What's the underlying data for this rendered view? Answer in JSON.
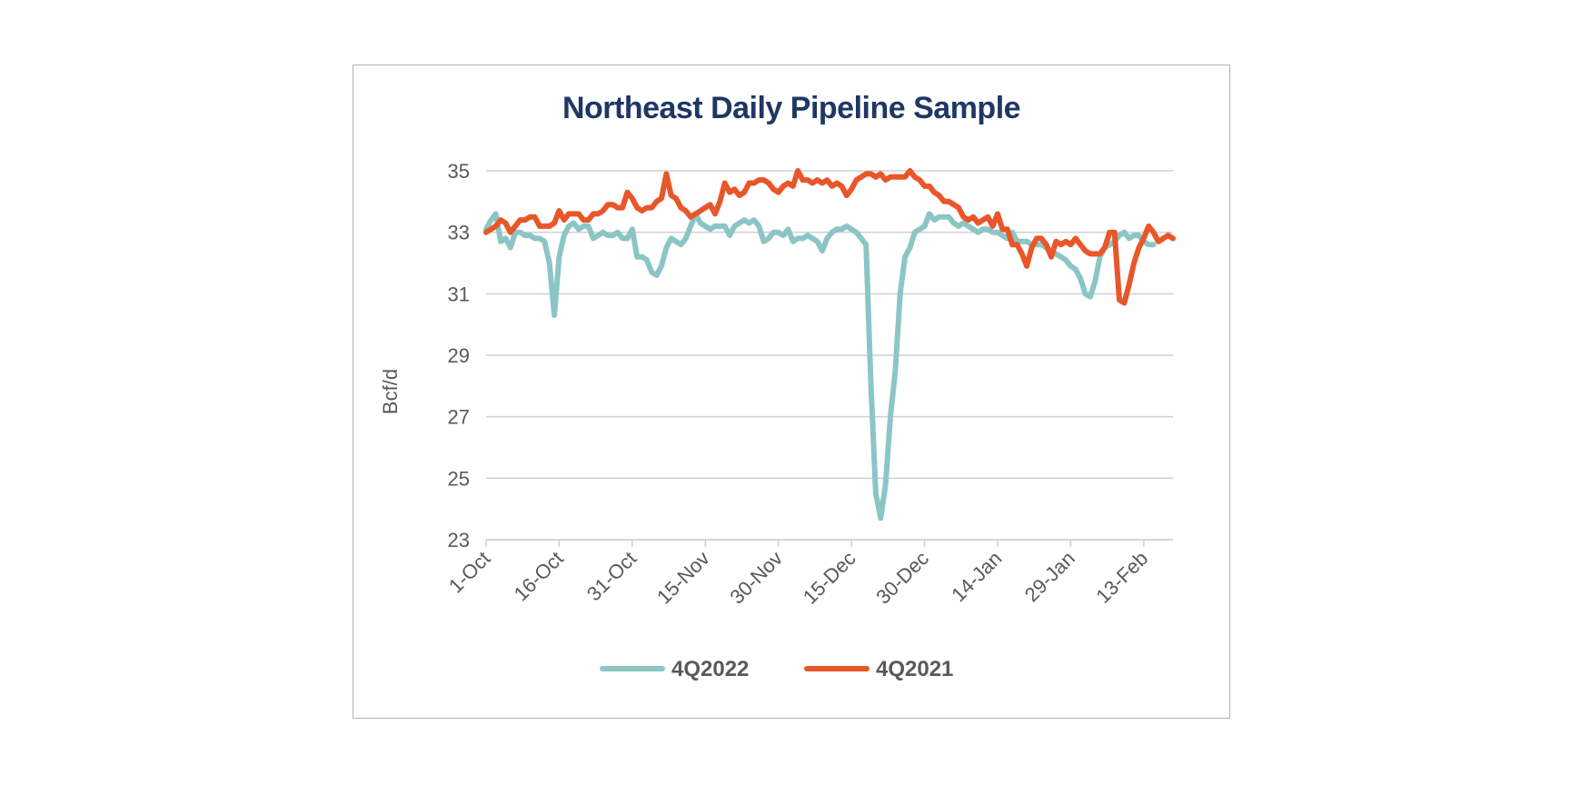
{
  "chart_data": {
    "type": "line",
    "title": "Northeast Daily Pipeline Sample",
    "ylabel": "Bcf/d",
    "xlabel": "",
    "ylim": [
      23,
      35
    ],
    "yticks": [
      23,
      25,
      27,
      29,
      31,
      33,
      35
    ],
    "x_start": "1-Oct",
    "x_end_day": 141,
    "xticks": [
      {
        "label": "1-Oct",
        "day": 0
      },
      {
        "label": "16-Oct",
        "day": 15
      },
      {
        "label": "31-Oct",
        "day": 30
      },
      {
        "label": "15-Nov",
        "day": 45
      },
      {
        "label": "30-Nov",
        "day": 60
      },
      {
        "label": "15-Dec",
        "day": 75
      },
      {
        "label": "30-Dec",
        "day": 90
      },
      {
        "label": "14-Jan",
        "day": 105
      },
      {
        "label": "29-Jan",
        "day": 120
      },
      {
        "label": "13-Feb",
        "day": 135
      }
    ],
    "grid": true,
    "legend_position": "bottom",
    "series": [
      {
        "name": "4Q2022",
        "color": "#8cc5c6",
        "points": [
          [
            0,
            33.1
          ],
          [
            1,
            33.4
          ],
          [
            2,
            33.6
          ],
          [
            3,
            32.7
          ],
          [
            4,
            32.8
          ],
          [
            5,
            32.5
          ],
          [
            6,
            33.0
          ],
          [
            7,
            33.0
          ],
          [
            8,
            32.9
          ],
          [
            9,
            32.9
          ],
          [
            10,
            32.8
          ],
          [
            11,
            32.8
          ],
          [
            12,
            32.7
          ],
          [
            13,
            32.0
          ],
          [
            14,
            30.3
          ],
          [
            15,
            32.2
          ],
          [
            16,
            32.9
          ],
          [
            17,
            33.2
          ],
          [
            18,
            33.3
          ],
          [
            19,
            33.1
          ],
          [
            20,
            33.2
          ],
          [
            21,
            33.2
          ],
          [
            22,
            32.8
          ],
          [
            23,
            32.9
          ],
          [
            24,
            33.0
          ],
          [
            25,
            32.9
          ],
          [
            26,
            32.9
          ],
          [
            27,
            33.0
          ],
          [
            28,
            32.8
          ],
          [
            29,
            32.8
          ],
          [
            30,
            33.1
          ],
          [
            31,
            32.2
          ],
          [
            32,
            32.2
          ],
          [
            33,
            32.1
          ],
          [
            34,
            31.7
          ],
          [
            35,
            31.6
          ],
          [
            36,
            31.9
          ],
          [
            37,
            32.5
          ],
          [
            38,
            32.8
          ],
          [
            39,
            32.7
          ],
          [
            40,
            32.6
          ],
          [
            41,
            32.8
          ],
          [
            42,
            33.2
          ],
          [
            43,
            33.6
          ],
          [
            44,
            33.3
          ],
          [
            45,
            33.2
          ],
          [
            46,
            33.1
          ],
          [
            47,
            33.2
          ],
          [
            48,
            33.2
          ],
          [
            49,
            33.2
          ],
          [
            50,
            32.9
          ],
          [
            51,
            33.2
          ],
          [
            52,
            33.3
          ],
          [
            53,
            33.4
          ],
          [
            54,
            33.3
          ],
          [
            55,
            33.4
          ],
          [
            56,
            33.2
          ],
          [
            57,
            32.7
          ],
          [
            58,
            32.8
          ],
          [
            59,
            33.0
          ],
          [
            60,
            33.0
          ],
          [
            61,
            32.9
          ],
          [
            62,
            33.1
          ],
          [
            63,
            32.7
          ],
          [
            64,
            32.8
          ],
          [
            65,
            32.8
          ],
          [
            66,
            32.9
          ],
          [
            67,
            32.8
          ],
          [
            68,
            32.7
          ],
          [
            69,
            32.4
          ],
          [
            70,
            32.8
          ],
          [
            71,
            33.0
          ],
          [
            72,
            33.1
          ],
          [
            73,
            33.1
          ],
          [
            74,
            33.2
          ],
          [
            75,
            33.1
          ],
          [
            76,
            33.0
          ],
          [
            77,
            32.8
          ],
          [
            78,
            32.6
          ],
          [
            79,
            28.0
          ],
          [
            80,
            24.5
          ],
          [
            81,
            23.7
          ],
          [
            82,
            24.8
          ],
          [
            83,
            27.0
          ],
          [
            84,
            28.5
          ],
          [
            85,
            31.0
          ],
          [
            86,
            32.2
          ],
          [
            87,
            32.5
          ],
          [
            88,
            33.0
          ],
          [
            89,
            33.1
          ],
          [
            90,
            33.2
          ],
          [
            91,
            33.6
          ],
          [
            92,
            33.4
          ],
          [
            93,
            33.5
          ],
          [
            94,
            33.5
          ],
          [
            95,
            33.5
          ],
          [
            96,
            33.3
          ],
          [
            97,
            33.2
          ],
          [
            98,
            33.3
          ],
          [
            99,
            33.2
          ],
          [
            100,
            33.1
          ],
          [
            101,
            33.0
          ],
          [
            102,
            33.1
          ],
          [
            103,
            33.1
          ],
          [
            104,
            33.0
          ],
          [
            105,
            33.0
          ],
          [
            106,
            32.9
          ],
          [
            107,
            32.8
          ],
          [
            108,
            33.0
          ],
          [
            109,
            32.7
          ],
          [
            110,
            32.7
          ],
          [
            111,
            32.7
          ],
          [
            112,
            32.6
          ],
          [
            113,
            32.6
          ],
          [
            114,
            32.6
          ],
          [
            115,
            32.5
          ],
          [
            116,
            32.3
          ],
          [
            117,
            32.3
          ],
          [
            118,
            32.2
          ],
          [
            119,
            32.1
          ],
          [
            120,
            31.9
          ],
          [
            121,
            31.8
          ],
          [
            122,
            31.5
          ],
          [
            123,
            31.0
          ],
          [
            124,
            30.9
          ],
          [
            125,
            31.4
          ],
          [
            126,
            32.2
          ],
          [
            127,
            32.5
          ],
          [
            128,
            32.6
          ],
          [
            129,
            32.7
          ],
          [
            130,
            32.9
          ],
          [
            131,
            33.0
          ],
          [
            132,
            32.8
          ],
          [
            133,
            32.9
          ],
          [
            134,
            32.9
          ],
          [
            135,
            32.7
          ],
          [
            136,
            32.6
          ],
          [
            137,
            32.6
          ]
        ]
      },
      {
        "name": "4Q2021",
        "color": "#e8562a",
        "points": [
          [
            0,
            33.0
          ],
          [
            1,
            33.1
          ],
          [
            2,
            33.2
          ],
          [
            3,
            33.4
          ],
          [
            4,
            33.3
          ],
          [
            5,
            33.0
          ],
          [
            6,
            33.2
          ],
          [
            7,
            33.4
          ],
          [
            8,
            33.4
          ],
          [
            9,
            33.5
          ],
          [
            10,
            33.5
          ],
          [
            11,
            33.2
          ],
          [
            12,
            33.2
          ],
          [
            13,
            33.2
          ],
          [
            14,
            33.3
          ],
          [
            15,
            33.7
          ],
          [
            16,
            33.4
          ],
          [
            17,
            33.6
          ],
          [
            18,
            33.6
          ],
          [
            19,
            33.6
          ],
          [
            20,
            33.4
          ],
          [
            21,
            33.4
          ],
          [
            22,
            33.6
          ],
          [
            23,
            33.6
          ],
          [
            24,
            33.7
          ],
          [
            25,
            33.9
          ],
          [
            26,
            33.9
          ],
          [
            27,
            33.8
          ],
          [
            28,
            33.8
          ],
          [
            29,
            34.3
          ],
          [
            30,
            34.1
          ],
          [
            31,
            33.8
          ],
          [
            32,
            33.7
          ],
          [
            33,
            33.8
          ],
          [
            34,
            33.8
          ],
          [
            35,
            34.0
          ],
          [
            36,
            34.1
          ],
          [
            37,
            34.9
          ],
          [
            38,
            34.2
          ],
          [
            39,
            34.1
          ],
          [
            40,
            33.8
          ],
          [
            41,
            33.7
          ],
          [
            42,
            33.5
          ],
          [
            43,
            33.6
          ],
          [
            44,
            33.7
          ],
          [
            45,
            33.8
          ],
          [
            46,
            33.9
          ],
          [
            47,
            33.6
          ],
          [
            48,
            34.0
          ],
          [
            49,
            34.6
          ],
          [
            50,
            34.3
          ],
          [
            51,
            34.4
          ],
          [
            52,
            34.2
          ],
          [
            53,
            34.3
          ],
          [
            54,
            34.6
          ],
          [
            55,
            34.6
          ],
          [
            56,
            34.7
          ],
          [
            57,
            34.7
          ],
          [
            58,
            34.6
          ],
          [
            59,
            34.4
          ],
          [
            60,
            34.3
          ],
          [
            61,
            34.5
          ],
          [
            62,
            34.6
          ],
          [
            63,
            34.5
          ],
          [
            64,
            35.0
          ],
          [
            65,
            34.7
          ],
          [
            66,
            34.7
          ],
          [
            67,
            34.6
          ],
          [
            68,
            34.7
          ],
          [
            69,
            34.6
          ],
          [
            70,
            34.7
          ],
          [
            71,
            34.5
          ],
          [
            72,
            34.6
          ],
          [
            73,
            34.5
          ],
          [
            74,
            34.2
          ],
          [
            75,
            34.4
          ],
          [
            76,
            34.7
          ],
          [
            77,
            34.8
          ],
          [
            78,
            34.9
          ],
          [
            79,
            34.9
          ],
          [
            80,
            34.8
          ],
          [
            81,
            34.9
          ],
          [
            82,
            34.7
          ],
          [
            83,
            34.8
          ],
          [
            84,
            34.8
          ],
          [
            85,
            34.8
          ],
          [
            86,
            34.8
          ],
          [
            87,
            35.0
          ],
          [
            88,
            34.8
          ],
          [
            89,
            34.7
          ],
          [
            90,
            34.5
          ],
          [
            91,
            34.5
          ],
          [
            92,
            34.3
          ],
          [
            93,
            34.2
          ],
          [
            94,
            34.0
          ],
          [
            95,
            34.0
          ],
          [
            96,
            33.9
          ],
          [
            97,
            33.8
          ],
          [
            98,
            33.5
          ],
          [
            99,
            33.4
          ],
          [
            100,
            33.5
          ],
          [
            101,
            33.3
          ],
          [
            102,
            33.4
          ],
          [
            103,
            33.5
          ],
          [
            104,
            33.2
          ],
          [
            105,
            33.6
          ],
          [
            106,
            33.1
          ],
          [
            107,
            33.1
          ],
          [
            108,
            32.6
          ],
          [
            109,
            32.6
          ],
          [
            110,
            32.3
          ],
          [
            111,
            31.9
          ],
          [
            112,
            32.5
          ],
          [
            113,
            32.8
          ],
          [
            114,
            32.8
          ],
          [
            115,
            32.6
          ],
          [
            116,
            32.2
          ],
          [
            117,
            32.7
          ],
          [
            118,
            32.6
          ],
          [
            119,
            32.7
          ],
          [
            120,
            32.6
          ],
          [
            121,
            32.8
          ],
          [
            122,
            32.6
          ],
          [
            123,
            32.4
          ],
          [
            124,
            32.3
          ],
          [
            125,
            32.3
          ],
          [
            126,
            32.3
          ],
          [
            127,
            32.5
          ],
          [
            128,
            33.0
          ],
          [
            129,
            33.0
          ],
          [
            130,
            30.8
          ],
          [
            131,
            30.7
          ],
          [
            132,
            31.3
          ],
          [
            133,
            32.0
          ],
          [
            134,
            32.5
          ],
          [
            135,
            32.8
          ],
          [
            136,
            33.2
          ],
          [
            137,
            33.0
          ],
          [
            138,
            32.7
          ],
          [
            139,
            32.8
          ],
          [
            140,
            32.9
          ],
          [
            141,
            32.8
          ]
        ]
      }
    ]
  }
}
